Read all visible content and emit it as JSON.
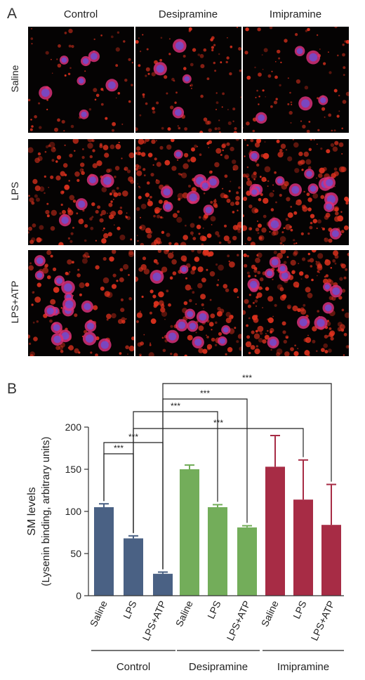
{
  "panel_a": {
    "letter": "A",
    "columns": [
      "Control",
      "Desipramine",
      "Imipramine"
    ],
    "rows": [
      "Saline",
      "LPS",
      "LPS+ATP"
    ]
  },
  "panel_b": {
    "letter": "B"
  },
  "colors": {
    "control": "#4a6184",
    "desipramine": "#73ad5a",
    "imipramine": "#a72c45",
    "tissue_red": "#e0321e",
    "nuclei": "#6a4fd6"
  },
  "chart_data": {
    "type": "bar",
    "ylabel": [
      "SM levels",
      "(Lysenin binding, arbitrary units)"
    ],
    "ylim": [
      0,
      200
    ],
    "yticks": [
      0,
      50,
      100,
      150,
      200
    ],
    "categories": [
      "Saline",
      "LPS",
      "LPS+ATP",
      "Saline",
      "LPS",
      "LPS+ATP",
      "Saline",
      "LPS",
      "LPS+ATP"
    ],
    "groups": [
      {
        "name": "Control",
        "indices": [
          0,
          1,
          2
        ]
      },
      {
        "name": "Desipramine",
        "indices": [
          3,
          4,
          5
        ]
      },
      {
        "name": "Imipramine",
        "indices": [
          6,
          7,
          8
        ]
      }
    ],
    "values": [
      105,
      68,
      26,
      150,
      105,
      81,
      153,
      114,
      84
    ],
    "errors": [
      4,
      3,
      2,
      5,
      3,
      2,
      37,
      47,
      48
    ],
    "significance": [
      {
        "from": 0,
        "to": 1,
        "label": "***"
      },
      {
        "from": 0,
        "to": 2,
        "label": "***"
      },
      {
        "from": 1,
        "to": 4,
        "label": "***"
      },
      {
        "from": 1,
        "to": 7,
        "label": "***"
      },
      {
        "from": 2,
        "to": 5,
        "label": "***"
      },
      {
        "from": 2,
        "to": 8,
        "label": "***"
      }
    ]
  }
}
